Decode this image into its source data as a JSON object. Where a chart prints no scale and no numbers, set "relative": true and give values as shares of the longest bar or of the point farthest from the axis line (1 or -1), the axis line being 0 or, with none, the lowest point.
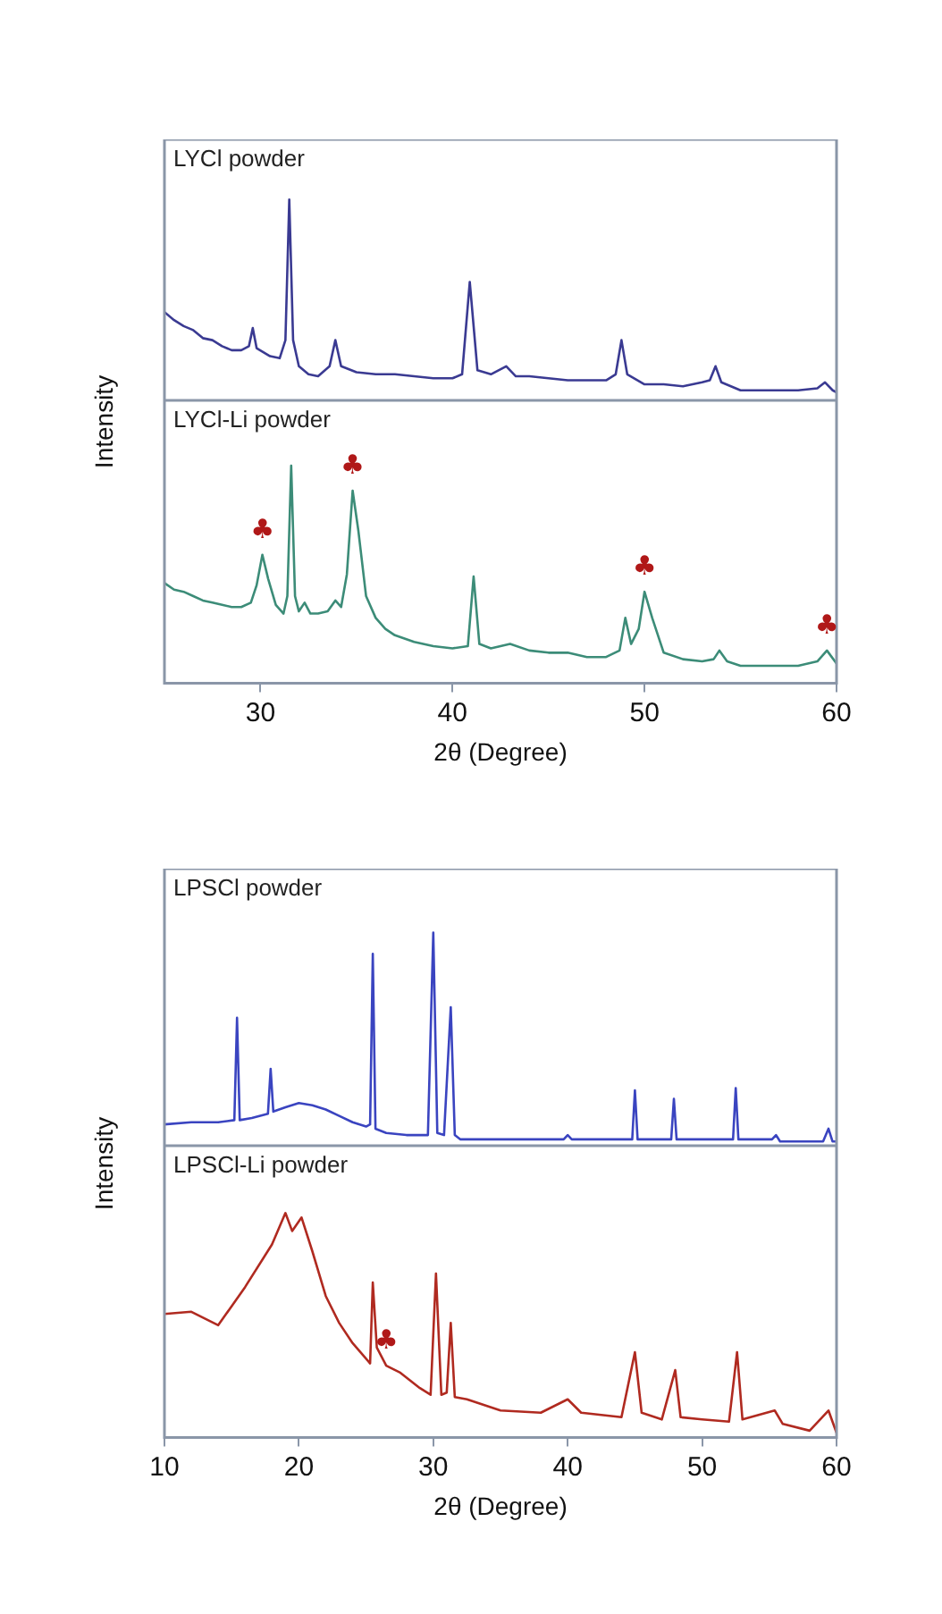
{
  "chart_data": [
    {
      "type": "line",
      "title": "LYCl powder",
      "ylabel": "Intensity",
      "relative": true,
      "xlim": [
        25,
        60
      ],
      "xticks": [
        30,
        40,
        50,
        60
      ],
      "tick_labels": false,
      "series": [
        {
          "color": "#3a3a92",
          "x": [
            25,
            25.5,
            26,
            26.5,
            27,
            27.5,
            28,
            28.5,
            29,
            29.4,
            29.6,
            29.8,
            30.5,
            31,
            31.3,
            31.5,
            31.7,
            32,
            32.5,
            33,
            33.6,
            33.9,
            34.2,
            35,
            36,
            37,
            38,
            39,
            40,
            40.5,
            40.9,
            41.3,
            42,
            42.8,
            43.3,
            44,
            45,
            46,
            47,
            48,
            48.5,
            48.8,
            49.1,
            50,
            51,
            52,
            53,
            53.4,
            53.7,
            54,
            55,
            56,
            57,
            58,
            59,
            59.4,
            59.8,
            60
          ],
          "values": [
            0.44,
            0.4,
            0.37,
            0.35,
            0.31,
            0.3,
            0.27,
            0.25,
            0.25,
            0.27,
            0.36,
            0.26,
            0.22,
            0.21,
            0.3,
            1.0,
            0.3,
            0.17,
            0.13,
            0.12,
            0.17,
            0.3,
            0.17,
            0.14,
            0.13,
            0.13,
            0.12,
            0.11,
            0.11,
            0.13,
            0.59,
            0.15,
            0.13,
            0.17,
            0.12,
            0.12,
            0.11,
            0.1,
            0.1,
            0.1,
            0.13,
            0.3,
            0.13,
            0.08,
            0.08,
            0.07,
            0.09,
            0.1,
            0.17,
            0.09,
            0.05,
            0.05,
            0.05,
            0.05,
            0.06,
            0.09,
            0.05,
            0.04
          ]
        }
      ]
    },
    {
      "type": "line",
      "title": "LYCl-Li powder",
      "xlabel": "2θ (Degree)",
      "relative": true,
      "xlim": [
        25,
        60
      ],
      "xticks": [
        30,
        40,
        50,
        60
      ],
      "tick_labels": "x",
      "annotations": [
        {
          "text": "♣",
          "x": 30.1,
          "y": 0.59
        },
        {
          "text": "♣",
          "x": 34.8,
          "y": 0.885
        },
        {
          "text": "♣",
          "x": 50,
          "y": 0.42
        },
        {
          "text": "♣",
          "x": 59.5,
          "y": 0.15
        }
      ],
      "series": [
        {
          "color": "#3c8c78",
          "x": [
            25,
            25.5,
            26,
            26.5,
            27,
            27.5,
            28,
            28.5,
            29,
            29.5,
            29.8,
            30.1,
            30.4,
            30.8,
            31.2,
            31.4,
            31.6,
            31.8,
            32,
            32.3,
            32.6,
            33,
            33.5,
            33.9,
            34.2,
            34.5,
            34.8,
            35.1,
            35.5,
            36,
            36.5,
            37,
            38,
            39,
            40,
            40.8,
            41.1,
            41.4,
            42,
            43,
            44,
            45,
            46,
            47,
            48,
            48.7,
            49,
            49.3,
            49.7,
            50,
            50.4,
            51,
            52,
            53,
            53.6,
            53.9,
            54.3,
            55,
            56,
            57,
            58,
            59,
            59.5,
            60
          ],
          "values": [
            0.46,
            0.43,
            0.42,
            0.4,
            0.38,
            0.37,
            0.36,
            0.35,
            0.35,
            0.37,
            0.45,
            0.59,
            0.48,
            0.36,
            0.32,
            0.4,
            1.0,
            0.4,
            0.33,
            0.37,
            0.32,
            0.32,
            0.33,
            0.38,
            0.35,
            0.5,
            0.885,
            0.7,
            0.4,
            0.3,
            0.25,
            0.22,
            0.19,
            0.17,
            0.16,
            0.17,
            0.49,
            0.18,
            0.16,
            0.18,
            0.15,
            0.14,
            0.14,
            0.12,
            0.12,
            0.15,
            0.3,
            0.18,
            0.25,
            0.42,
            0.3,
            0.14,
            0.11,
            0.1,
            0.11,
            0.15,
            0.1,
            0.08,
            0.08,
            0.08,
            0.08,
            0.1,
            0.15,
            0.09
          ]
        }
      ]
    },
    {
      "type": "line",
      "title": "LPSCl powder",
      "ylabel": "Intensity",
      "relative": true,
      "xlim": [
        10,
        60
      ],
      "xticks": [
        10,
        20,
        30,
        40,
        50,
        60
      ],
      "tick_labels": false,
      "series": [
        {
          "color": "#3a44c0",
          "x": [
            10,
            12,
            14,
            15.2,
            15.4,
            15.6,
            16.5,
            17.7,
            17.9,
            18.1,
            19,
            20,
            21,
            22,
            23,
            24,
            25,
            25.3,
            25.5,
            25.7,
            26.5,
            28,
            29.6,
            30,
            30.3,
            30.8,
            31.3,
            31.6,
            32,
            34,
            36,
            38,
            39.7,
            40,
            40.3,
            42,
            44,
            44.8,
            45,
            45.2,
            46,
            47.7,
            47.9,
            48.1,
            50,
            52.3,
            52.5,
            52.7,
            55.2,
            55.5,
            55.8,
            57,
            59,
            59.4,
            59.7,
            60
          ],
          "values": [
            0.1,
            0.11,
            0.11,
            0.12,
            0.6,
            0.12,
            0.13,
            0.15,
            0.36,
            0.16,
            0.18,
            0.2,
            0.19,
            0.17,
            0.14,
            0.11,
            0.09,
            0.1,
            0.9,
            0.08,
            0.06,
            0.05,
            0.05,
            1.0,
            0.06,
            0.05,
            0.65,
            0.05,
            0.03,
            0.03,
            0.03,
            0.03,
            0.03,
            0.05,
            0.03,
            0.03,
            0.03,
            0.03,
            0.26,
            0.03,
            0.03,
            0.03,
            0.22,
            0.03,
            0.03,
            0.03,
            0.27,
            0.03,
            0.03,
            0.05,
            0.02,
            0.02,
            0.02,
            0.08,
            0.02,
            0.02
          ]
        }
      ]
    },
    {
      "type": "line",
      "title": "LPSCl-Li powder",
      "xlabel": "2θ (Degree)",
      "relative": true,
      "xlim": [
        10,
        60
      ],
      "xticks": [
        10,
        20,
        30,
        40,
        50,
        60
      ],
      "tick_labels": "x",
      "annotations": [
        {
          "text": "♣",
          "x": 26.5,
          "y": 0.32
        }
      ],
      "series": [
        {
          "color": "#b02a20",
          "x": [
            10,
            12,
            14,
            16,
            18,
            19,
            19.5,
            20.2,
            21,
            22,
            23,
            24,
            25.3,
            25.5,
            25.8,
            26.5,
            27.5,
            29,
            29.8,
            30.2,
            30.6,
            31,
            31.3,
            31.6,
            32.5,
            35,
            38,
            40,
            41,
            44,
            45,
            45.5,
            47,
            48,
            48.4,
            50,
            52,
            52.6,
            53,
            55.4,
            56,
            58,
            59.4,
            60
          ],
          "values": [
            0.55,
            0.56,
            0.5,
            0.67,
            0.86,
            1.0,
            0.92,
            0.98,
            0.83,
            0.63,
            0.51,
            0.42,
            0.33,
            0.69,
            0.4,
            0.32,
            0.29,
            0.22,
            0.19,
            0.73,
            0.19,
            0.2,
            0.51,
            0.18,
            0.17,
            0.12,
            0.11,
            0.17,
            0.11,
            0.09,
            0.38,
            0.11,
            0.08,
            0.3,
            0.09,
            0.08,
            0.07,
            0.38,
            0.08,
            0.12,
            0.06,
            0.03,
            0.12,
            0.02
          ]
        }
      ]
    }
  ]
}
